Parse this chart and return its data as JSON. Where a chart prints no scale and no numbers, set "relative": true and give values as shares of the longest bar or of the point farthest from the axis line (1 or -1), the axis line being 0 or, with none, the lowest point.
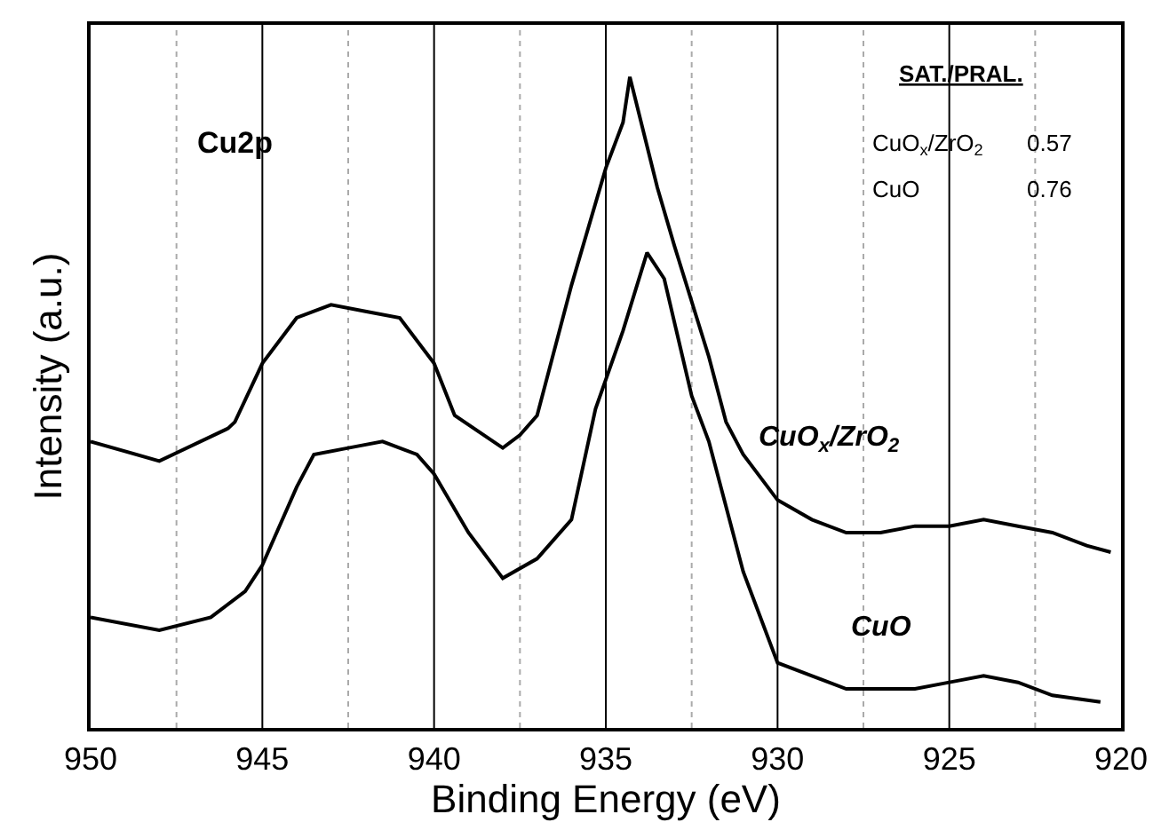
{
  "chart_data": {
    "type": "line",
    "relative": true,
    "xlabel": "Binding Energy (eV)",
    "ylabel": "Intensity (a.u.)",
    "xlim": [
      950,
      920
    ],
    "xticks": [
      950,
      {
        "value": 947.5,
        "label": null
      },
      945,
      {
        "value": 942.5,
        "label": null
      },
      940,
      {
        "value": 937.5,
        "label": null
      },
      935,
      {
        "value": 932.5,
        "label": null
      },
      930,
      {
        "value": 927.5,
        "label": null
      },
      925,
      {
        "value": 922.5,
        "label": null
      },
      920
    ],
    "grid": "x",
    "legend": false,
    "marker": "none",
    "line_style": "solid",
    "tick_labels": "x",
    "annotations": [
      "Cu2p",
      "SAT./PRAL.",
      "CuO$_{x}$/ZrO$_{2}$",
      "0.57",
      "CuO",
      "0.76"
    ],
    "series": [
      {
        "name": "CuO$_{x}$/ZrO$_{2}$",
        "color": "#000000",
        "x": [
          950,
          948,
          946,
          945.8,
          945,
          944,
          943,
          942,
          941,
          940,
          939.4,
          938,
          937.5,
          937,
          936,
          935,
          934.5,
          934.3,
          933.5,
          933,
          932,
          931.5,
          931,
          930,
          929,
          928,
          927,
          926,
          925,
          924,
          923,
          922,
          921,
          920.3
        ],
        "values": [
          0.44,
          0.41,
          0.46,
          0.47,
          0.56,
          0.63,
          0.65,
          0.64,
          0.63,
          0.56,
          0.48,
          0.43,
          0.45,
          0.48,
          0.68,
          0.86,
          0.93,
          1.0,
          0.83,
          0.74,
          0.57,
          0.47,
          0.42,
          0.35,
          0.32,
          0.3,
          0.3,
          0.31,
          0.31,
          0.32,
          0.31,
          0.3,
          0.28,
          0.27
        ]
      },
      {
        "name": "CuO",
        "color": "#000000",
        "x": [
          950,
          948,
          946.5,
          945.5,
          945,
          944,
          943.5,
          942.5,
          941.5,
          940.5,
          940,
          939,
          938,
          937,
          936,
          935.3,
          934.5,
          933.8,
          933.3,
          932.5,
          932,
          931,
          930,
          929,
          928,
          926,
          925,
          924,
          923,
          922,
          920.6
        ],
        "values": [
          0.17,
          0.15,
          0.17,
          0.21,
          0.25,
          0.37,
          0.42,
          0.43,
          0.44,
          0.42,
          0.39,
          0.3,
          0.23,
          0.26,
          0.32,
          0.49,
          0.61,
          0.73,
          0.69,
          0.51,
          0.44,
          0.24,
          0.1,
          0.08,
          0.06,
          0.06,
          0.07,
          0.08,
          0.07,
          0.05,
          0.04
        ]
      }
    ]
  }
}
